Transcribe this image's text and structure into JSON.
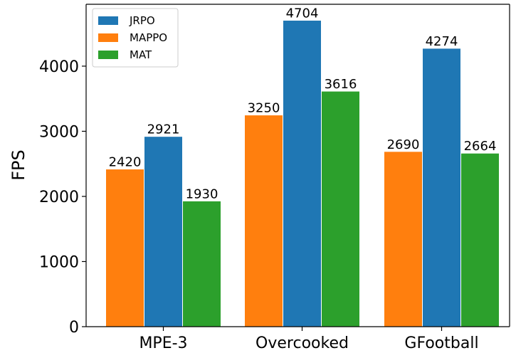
{
  "chart_data": {
    "type": "bar",
    "title": "",
    "xlabel": "",
    "ylabel": "FPS",
    "categories": [
      "MPE-3",
      "Overcooked",
      "GFootball"
    ],
    "series": [
      {
        "name": "JRPO",
        "color": "#1f77b4",
        "values": [
          2921,
          4704,
          4274
        ]
      },
      {
        "name": "MAPPO",
        "color": "#ff7f0e",
        "values": [
          2420,
          3250,
          2690
        ]
      },
      {
        "name": "MAT",
        "color": "#2ca02c",
        "values": [
          1930,
          3616,
          2664
        ]
      }
    ],
    "bar_order": [
      "MAPPO",
      "JRPO",
      "MAT"
    ],
    "ylim": [
      0,
      4950
    ],
    "yticks": [
      0,
      1000,
      2000,
      3000,
      4000
    ],
    "legend_position": "top-left",
    "grid": false,
    "data_labels": true
  }
}
